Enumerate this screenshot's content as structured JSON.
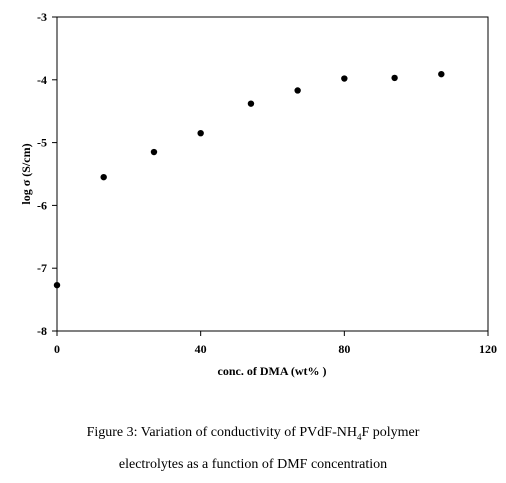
{
  "chart_data": {
    "type": "scatter",
    "xlabel": "conc. of DMA (wt% )",
    "ylabel": "log σ (S/cm)",
    "xlim": [
      0,
      120
    ],
    "ylim": [
      -8,
      -3
    ],
    "xticks": [
      "0",
      "40",
      "80",
      "120"
    ],
    "yticks": [
      "-3",
      "-4",
      "-5",
      "-6",
      "-7",
      "-8"
    ],
    "grid": false,
    "series": [
      {
        "x": [
          0,
          13,
          27,
          40,
          54,
          67,
          80,
          94,
          107
        ],
        "y": [
          -7.27,
          -5.55,
          -5.15,
          -4.85,
          -4.38,
          -4.17,
          -3.98,
          -3.97,
          -3.91
        ],
        "color": "#000000"
      }
    ]
  },
  "caption": {
    "line1_pre": "Figure 3: Variation of conductivity of PVdF-NH",
    "line1_sub": "4",
    "line1_post": "F polymer",
    "line2": "electrolytes as a function of DMF concentration"
  }
}
